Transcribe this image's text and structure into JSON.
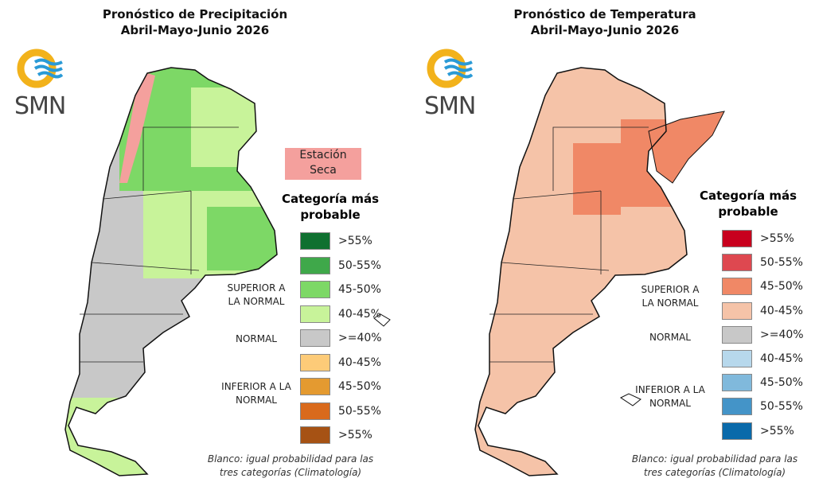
{
  "panels": [
    {
      "title_line1": "Pronóstico de Precipitación",
      "title_line2": "Abril-Mayo-Junio 2026",
      "logo": "SMN",
      "dry_season_label": "Estación Seca",
      "legend_title": "Categoría más probable",
      "categories": {
        "above": "SUPERIOR A LA NORMAL",
        "normal": "NORMAL",
        "below": "INFERIOR A LA NORMAL"
      },
      "legend": [
        {
          "label": ">55%",
          "color": "#0f7030"
        },
        {
          "label": "50-55%",
          "color": "#3fa84a"
        },
        {
          "label": "45-50%",
          "color": "#7dd866"
        },
        {
          "label": "40-45%",
          "color": "#c8f39a"
        },
        {
          "label": ">=40%",
          "color": "#c8c8c8"
        },
        {
          "label": "40-45%",
          "color": "#fdcb78"
        },
        {
          "label": "45-50%",
          "color": "#e49a30"
        },
        {
          "label": "50-55%",
          "color": "#d96a1c"
        },
        {
          "label": ">55%",
          "color": "#a65214"
        }
      ],
      "note": "Blanco: igual probabilidad para las tres categorías (Climatología)"
    },
    {
      "title_line1": "Pronóstico de Temperatura",
      "title_line2": "Abril-Mayo-Junio 2026",
      "logo": "SMN",
      "legend_title": "Categoría más probable",
      "categories": {
        "above": "SUPERIOR A LA NORMAL",
        "normal": "NORMAL",
        "below": "INFERIOR A LA NORMAL"
      },
      "legend": [
        {
          "label": ">55%",
          "color": "#c8001e"
        },
        {
          "label": "50-55%",
          "color": "#de4850"
        },
        {
          "label": "45-50%",
          "color": "#f08866"
        },
        {
          "label": "40-45%",
          "color": "#f5c3a8"
        },
        {
          "label": ">=40%",
          "color": "#c8c8c8"
        },
        {
          "label": "40-45%",
          "color": "#b7d8ec"
        },
        {
          "label": "45-50%",
          "color": "#80b9dc"
        },
        {
          "label": "50-55%",
          "color": "#4494c8"
        },
        {
          "label": ">55%",
          "color": "#0a6aaa"
        }
      ],
      "note": "Blanco: igual probabilidad para las tres categorías (Climatología)"
    }
  ],
  "colors": {
    "dry_season": "#f4a09d",
    "logo_sun": "#f2b21b",
    "logo_waves": "#2a9ad6"
  }
}
